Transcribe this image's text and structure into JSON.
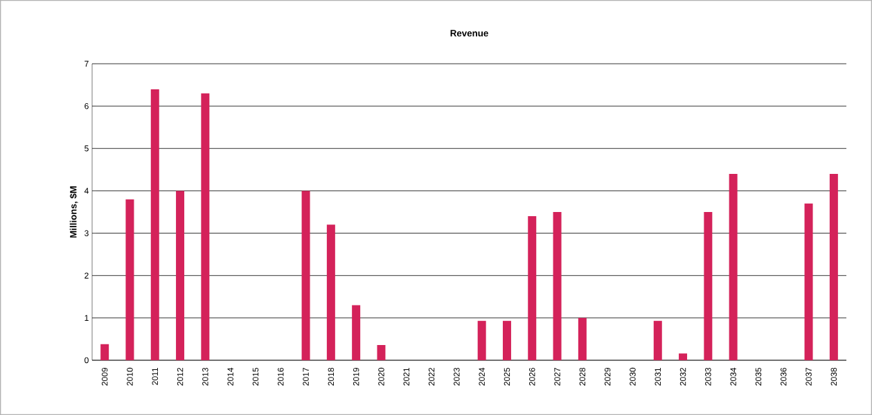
{
  "chart_data": {
    "type": "bar",
    "title": "Revenue",
    "ylabel": "Millions, $M",
    "categories": [
      "2009",
      "2010",
      "2011",
      "2012",
      "2013",
      "2014",
      "2015",
      "2016",
      "2017",
      "2018",
      "2019",
      "2020",
      "2021",
      "2022",
      "2023",
      "2024",
      "2025",
      "2026",
      "2027",
      "2028",
      "2029",
      "2030",
      "2031",
      "2032",
      "2033",
      "2034",
      "2035",
      "2036",
      "2037",
      "2038"
    ],
    "values": [
      0.38,
      3.8,
      6.4,
      4.0,
      6.3,
      0,
      0,
      0,
      4.0,
      3.2,
      1.3,
      0.36,
      0,
      0,
      0,
      0.93,
      0.93,
      3.4,
      3.5,
      1.0,
      0,
      0,
      0.93,
      0.16,
      3.5,
      4.4,
      0,
      0,
      3.7,
      4.4
    ],
    "color": "#d4225a",
    "ylim": [
      0,
      7
    ],
    "yticks": [
      0,
      1,
      2,
      3,
      4,
      5,
      6,
      7
    ],
    "grid": "y"
  }
}
